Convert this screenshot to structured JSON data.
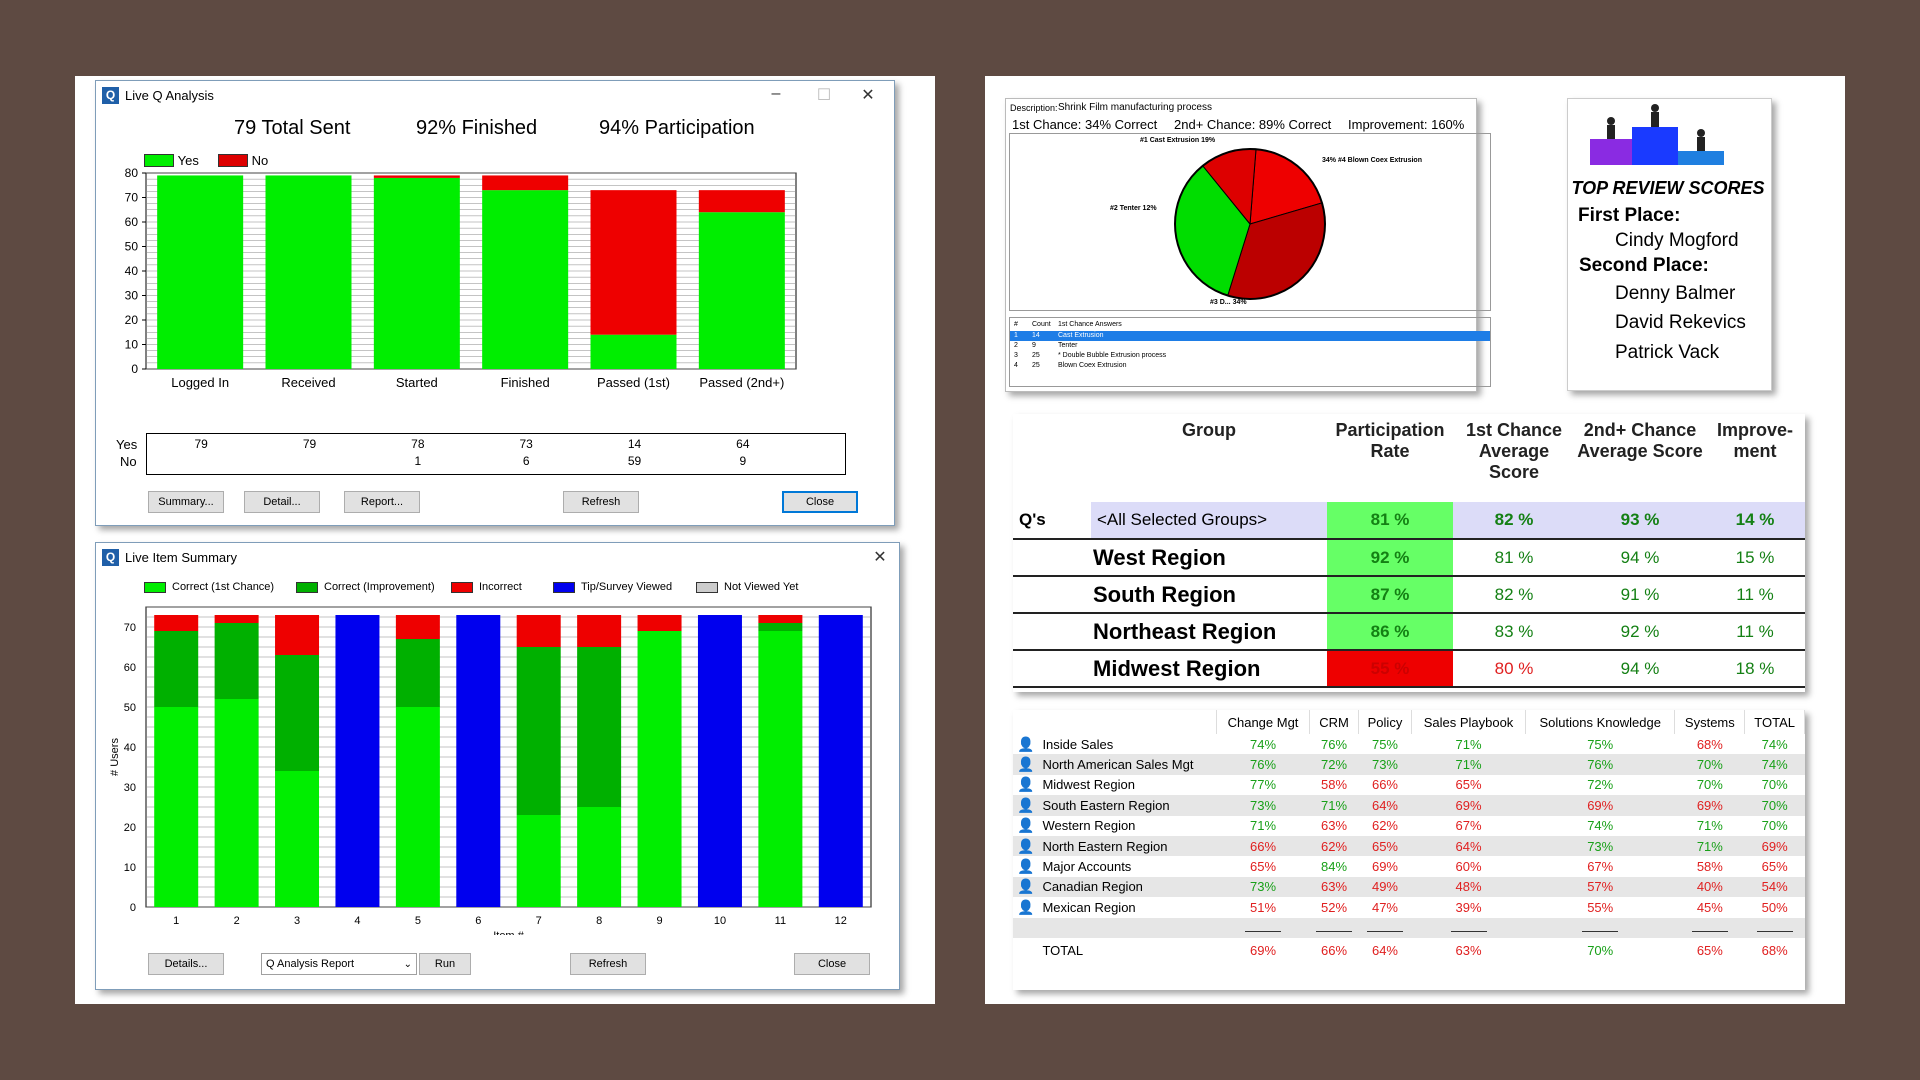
{
  "q_analysis": {
    "title": "Live Q Analysis",
    "stats": [
      "79 Total Sent",
      "92% Finished",
      "94% Participation"
    ],
    "legend": [
      {
        "label": "Yes",
        "color": "#00ee00"
      },
      {
        "label": "No",
        "color": "#dd0000"
      }
    ],
    "buttons": {
      "summary": "Summary...",
      "detail": "Detail...",
      "report": "Report...",
      "refresh": "Refresh",
      "close": "Close"
    },
    "row_labels": {
      "yes": "Yes",
      "no": "No"
    }
  },
  "chart_data": [
    {
      "type": "bar",
      "title": "Live Q Analysis",
      "stacked": true,
      "categories": [
        "Logged In",
        "Received",
        "Started",
        "Finished",
        "Passed (1st)",
        "Passed (2nd+)"
      ],
      "series": [
        {
          "name": "Yes",
          "values": [
            79,
            79,
            78,
            73,
            14,
            64
          ]
        },
        {
          "name": "No",
          "values": [
            0,
            0,
            1,
            6,
            59,
            9
          ]
        }
      ],
      "table": {
        "yes": [
          "79",
          "79",
          "78",
          "73",
          "14",
          "64"
        ],
        "no": [
          "",
          "",
          "1",
          "6",
          "59",
          "9"
        ]
      },
      "ylim": [
        0,
        80
      ],
      "yticks": [
        "0",
        "10",
        "20",
        "30",
        "40",
        "50",
        "60",
        "70",
        "80"
      ],
      "xlabel": "",
      "ylabel": ""
    },
    {
      "type": "bar",
      "title": "Live Item Summary",
      "stacked": true,
      "categories": [
        "1",
        "2",
        "3",
        "4",
        "5",
        "6",
        "7",
        "8",
        "9",
        "10",
        "11",
        "12"
      ],
      "series": [
        {
          "name": "Correct (1st Chance)",
          "values": [
            50,
            52,
            34,
            0,
            50,
            0,
            23,
            25,
            69,
            0,
            69,
            0
          ]
        },
        {
          "name": "Correct (Improvement)",
          "values": [
            19,
            19,
            29,
            0,
            17,
            0,
            42,
            40,
            0,
            0,
            2,
            0
          ]
        },
        {
          "name": "Incorrect",
          "values": [
            4,
            2,
            10,
            0,
            6,
            0,
            8,
            8,
            4,
            0,
            2,
            0
          ]
        },
        {
          "name": "Tip/Survey Viewed",
          "values": [
            0,
            0,
            0,
            73,
            0,
            73,
            0,
            0,
            0,
            73,
            0,
            73
          ]
        },
        {
          "name": "Not Viewed Yet",
          "values": [
            0,
            0,
            0,
            0,
            0,
            0,
            0,
            0,
            0,
            0,
            0,
            0
          ]
        }
      ],
      "ylim": [
        0,
        75
      ],
      "yticks": [
        "0",
        "10",
        "20",
        "30",
        "40",
        "50",
        "60",
        "70"
      ],
      "xlabel": "Item #",
      "ylabel": "# Users"
    },
    {
      "type": "pie",
      "title": "Shrink Film manufacturing process",
      "labels": [
        "#1 Cast Extrusion 19%",
        "34% #4 Blown Coex Extrusion",
        "#3 D... 34%",
        "#2 Tenter 12%"
      ],
      "values": [
        19,
        34,
        34,
        12
      ],
      "colors": [
        "#ee0000",
        "#bb0000",
        "#00dd00",
        "#dd0000"
      ]
    }
  ],
  "item_summary": {
    "title": "Live Item Summary",
    "legend": [
      {
        "label": "Correct (1st Chance)",
        "color": "#00ee00"
      },
      {
        "label": "Correct (Improvement)",
        "color": "#00b000"
      },
      {
        "label": "Incorrect",
        "color": "#ee0000"
      },
      {
        "label": "Tip/Survey Viewed",
        "color": "#0000ee"
      },
      {
        "label": "Not Viewed Yet",
        "color": "#cccccc"
      }
    ],
    "buttons": {
      "details": "Details...",
      "report_select": "Q Analysis Report",
      "run": "Run",
      "refresh": "Refresh",
      "close": "Close"
    }
  },
  "pie_panel": {
    "description_label": "Description:",
    "description": "Shrink Film manufacturing process",
    "stats": [
      "1st Chance: 34% Correct",
      "2nd+ Chance: 89% Correct",
      "Improvement: 160%"
    ],
    "table_headers": [
      "#",
      "Count",
      "1st Chance Answers"
    ],
    "table_rows": [
      [
        "1",
        "14",
        "Cast Extrusion"
      ],
      [
        "2",
        "9",
        "Tenter"
      ],
      [
        "3",
        "25",
        "* Double Bubble Extrusion process"
      ],
      [
        "4",
        "25",
        "Blown Coex Extrusion"
      ]
    ]
  },
  "top_scores": {
    "title": "TOP REVIEW SCORES",
    "first_label": "First Place:",
    "first": [
      "Cindy Mogford"
    ],
    "second_label": "Second Place:",
    "second": [
      "Denny Balmer",
      "David Rekevics",
      "Patrick Vack"
    ]
  },
  "group_table": {
    "headers": [
      "Group",
      "Participation Rate",
      "1st Chance Average Score",
      "2nd+ Chance Average Score",
      "Improve-ment"
    ],
    "row_label": "Q's",
    "rows": [
      {
        "name": "<All Selected Groups>",
        "part": "81 %",
        "first": "82 %",
        "second": "93 %",
        "imp": "14 %"
      },
      {
        "name": "West Region",
        "part": "92 %",
        "first": "81 %",
        "second": "94 %",
        "imp": "15 %"
      },
      {
        "name": "South Region",
        "part": "87 %",
        "first": "82 %",
        "second": "91 %",
        "imp": "11 %"
      },
      {
        "name": "Northeast Region",
        "part": "86 %",
        "first": "83 %",
        "second": "92 %",
        "imp": "11 %"
      },
      {
        "name": "Midwest Region",
        "part": "55 %",
        "first": "80 %",
        "second": "94 %",
        "imp": "18 %"
      }
    ]
  },
  "region_table": {
    "headers": [
      "Change Mgt",
      "CRM",
      "Policy",
      "Sales Playbook",
      "Solutions Knowledge",
      "Systems",
      "TOTAL"
    ],
    "rows": [
      {
        "name": "Inside Sales",
        "v": [
          "74%",
          "76%",
          "75%",
          "71%",
          "75%",
          "68%",
          "74%"
        ]
      },
      {
        "name": "North American Sales Mgt",
        "v": [
          "76%",
          "72%",
          "73%",
          "71%",
          "76%",
          "70%",
          "74%"
        ]
      },
      {
        "name": "Midwest Region",
        "v": [
          "77%",
          "58%",
          "66%",
          "65%",
          "72%",
          "70%",
          "70%"
        ]
      },
      {
        "name": "South Eastern Region",
        "v": [
          "73%",
          "71%",
          "64%",
          "69%",
          "69%",
          "69%",
          "70%"
        ]
      },
      {
        "name": "Western Region",
        "v": [
          "71%",
          "63%",
          "62%",
          "67%",
          "74%",
          "71%",
          "70%"
        ]
      },
      {
        "name": "North Eastern Region",
        "v": [
          "66%",
          "62%",
          "65%",
          "64%",
          "73%",
          "71%",
          "69%"
        ]
      },
      {
        "name": "Major Accounts",
        "v": [
          "65%",
          "84%",
          "69%",
          "60%",
          "67%",
          "58%",
          "65%"
        ]
      },
      {
        "name": "Canadian Region",
        "v": [
          "73%",
          "63%",
          "49%",
          "48%",
          "57%",
          "40%",
          "54%"
        ]
      },
      {
        "name": "Mexican Region",
        "v": [
          "51%",
          "52%",
          "47%",
          "39%",
          "55%",
          "45%",
          "50%"
        ]
      }
    ],
    "total_label": "TOTAL",
    "totals": [
      "69%",
      "66%",
      "64%",
      "63%",
      "70%",
      "65%",
      "68%"
    ],
    "colors": {
      "good": "#18a018",
      "bad": "#e02020"
    }
  }
}
